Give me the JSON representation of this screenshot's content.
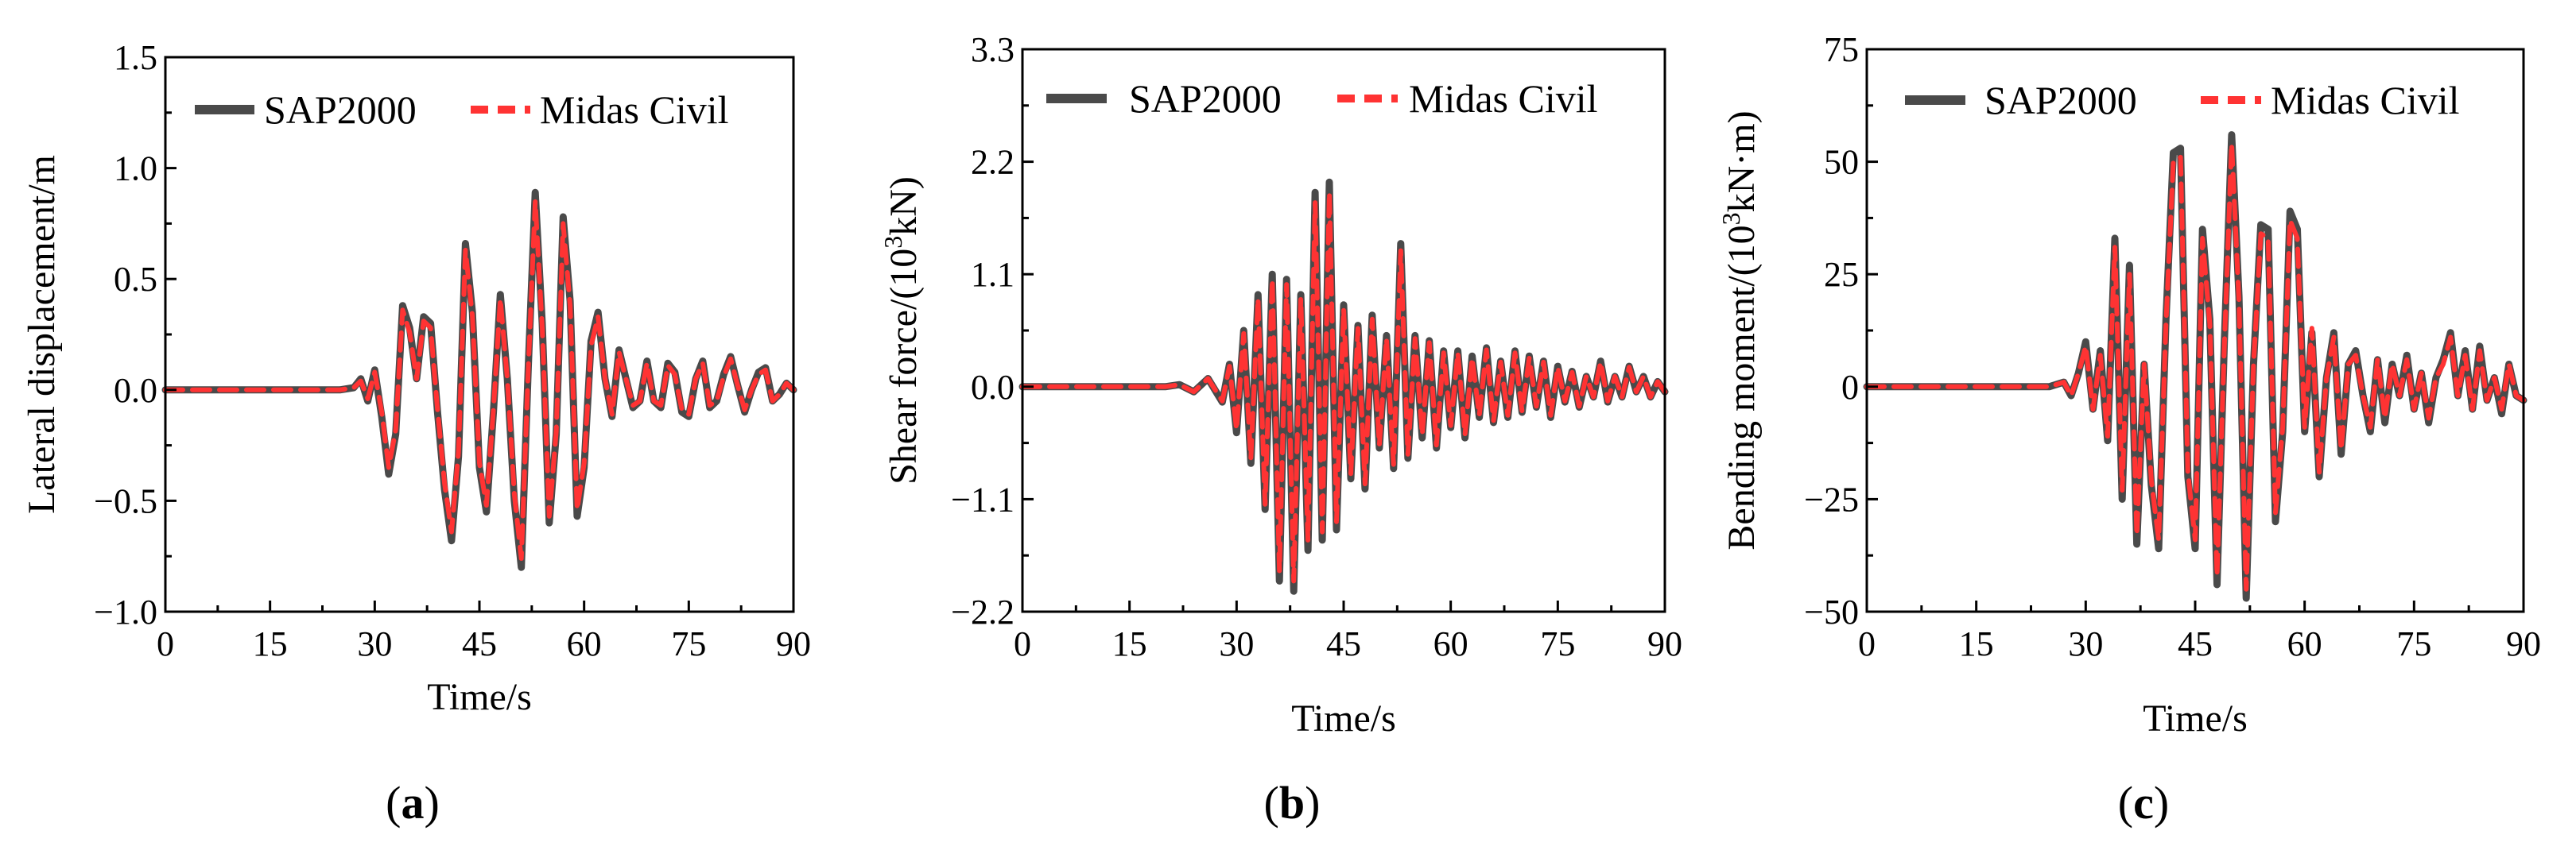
{
  "colors": {
    "sap2000": "#4a4a4a",
    "midas": "#ff3333",
    "axis": "#000000"
  },
  "legend": {
    "sap2000": "SAP2000",
    "midas": "Midas Civil"
  },
  "chart_data": [
    {
      "type": "line",
      "panel_label": "a",
      "xlabel": "Time/s",
      "ylabel": "Lateral displacement/m",
      "xlim": [
        0,
        90
      ],
      "ylim": [
        -1.0,
        1.5
      ],
      "xticks": [
        0,
        15,
        30,
        45,
        60,
        75,
        90
      ],
      "yticks": [
        -1.0,
        -0.5,
        0.0,
        0.5,
        1.0,
        1.5
      ],
      "ytick_labels": [
        "−1.0",
        "−0.5",
        "0.0",
        "0.5",
        "1.0",
        "1.5"
      ],
      "legend_position": "top",
      "series": [
        {
          "name": "SAP2000",
          "x": [
            0,
            5,
            10,
            15,
            20,
            25,
            27,
            28,
            29,
            30,
            31,
            32,
            33,
            34,
            35,
            36,
            37,
            38,
            39,
            40,
            41,
            42,
            43,
            44,
            45,
            46,
            47,
            48,
            49,
            50,
            51,
            52,
            53,
            54,
            55,
            56,
            57,
            58,
            59,
            60,
            61,
            62,
            63,
            64,
            65,
            66,
            67,
            68,
            69,
            70,
            71,
            72,
            73,
            74,
            75,
            76,
            77,
            78,
            79,
            80,
            81,
            82,
            83,
            84,
            85,
            86,
            87,
            88,
            89,
            90
          ],
          "y": [
            0,
            0,
            0,
            0,
            0,
            0,
            0.01,
            0.05,
            -0.05,
            0.09,
            -0.12,
            -0.38,
            -0.2,
            0.38,
            0.28,
            0.05,
            0.33,
            0.3,
            -0.1,
            -0.45,
            -0.68,
            -0.3,
            0.66,
            0.35,
            -0.35,
            -0.55,
            -0.1,
            0.43,
            0.05,
            -0.5,
            -0.8,
            0.1,
            0.89,
            0.3,
            -0.6,
            -0.2,
            0.78,
            0.4,
            -0.57,
            -0.35,
            0.22,
            0.35,
            0.05,
            -0.12,
            0.18,
            0.05,
            -0.08,
            -0.05,
            0.13,
            -0.05,
            -0.08,
            0.12,
            0.08,
            -0.1,
            -0.12,
            0.05,
            0.13,
            -0.08,
            -0.05,
            0.07,
            0.15,
            0.02,
            -0.1,
            0.0,
            0.08,
            0.1,
            -0.05,
            -0.02,
            0.03,
            0.0
          ]
        },
        {
          "name": "Midas Civil",
          "x": [
            0,
            5,
            10,
            15,
            20,
            25,
            27,
            28,
            29,
            30,
            31,
            32,
            33,
            34,
            35,
            36,
            37,
            38,
            39,
            40,
            41,
            42,
            43,
            44,
            45,
            46,
            47,
            48,
            49,
            50,
            51,
            52,
            53,
            54,
            55,
            56,
            57,
            58,
            59,
            60,
            61,
            62,
            63,
            64,
            65,
            66,
            67,
            68,
            69,
            70,
            71,
            72,
            73,
            74,
            75,
            76,
            77,
            78,
            79,
            80,
            81,
            82,
            83,
            84,
            85,
            86,
            87,
            88,
            89,
            90
          ],
          "y": [
            0,
            0,
            0,
            0,
            0,
            0,
            0.01,
            0.04,
            -0.04,
            0.08,
            -0.1,
            -0.35,
            -0.18,
            0.36,
            0.26,
            0.05,
            0.31,
            0.28,
            -0.09,
            -0.42,
            -0.64,
            -0.28,
            0.63,
            0.33,
            -0.33,
            -0.52,
            -0.09,
            0.41,
            0.05,
            -0.47,
            -0.76,
            0.09,
            0.85,
            0.28,
            -0.57,
            -0.19,
            0.75,
            0.38,
            -0.54,
            -0.33,
            0.2,
            0.33,
            0.05,
            -0.11,
            0.17,
            0.05,
            -0.07,
            -0.05,
            0.12,
            -0.05,
            -0.07,
            0.11,
            0.07,
            -0.09,
            -0.11,
            0.05,
            0.12,
            -0.07,
            -0.05,
            0.06,
            0.14,
            0.02,
            -0.09,
            0.0,
            0.07,
            0.09,
            -0.05,
            -0.02,
            0.03,
            0.0
          ]
        }
      ]
    },
    {
      "type": "line",
      "panel_label": "b",
      "xlabel": "Time/s",
      "ylabel_prefix": "Shear force/(10",
      "ylabel_sup": "3",
      "ylabel_suffix": "kN)",
      "xlim": [
        0,
        90
      ],
      "ylim": [
        -2.2,
        3.3
      ],
      "xticks": [
        0,
        15,
        30,
        45,
        60,
        75,
        90
      ],
      "yticks": [
        -2.2,
        -1.1,
        0.0,
        1.1,
        2.2,
        3.3
      ],
      "ytick_labels": [
        "−2.2",
        "−1.1",
        "0.0",
        "1.1",
        "2.2",
        "3.3"
      ],
      "legend_position": "top",
      "series": [
        {
          "name": "SAP2000",
          "x": [
            0,
            10,
            20,
            22,
            24,
            26,
            28,
            29,
            30,
            31,
            32,
            33,
            34,
            35,
            36,
            37,
            38,
            39,
            40,
            41,
            42,
            43,
            44,
            45,
            46,
            47,
            48,
            49,
            50,
            51,
            52,
            53,
            54,
            55,
            56,
            57,
            58,
            59,
            60,
            61,
            62,
            63,
            64,
            65,
            66,
            67,
            68,
            69,
            70,
            71,
            72,
            73,
            74,
            75,
            76,
            77,
            78,
            79,
            80,
            81,
            82,
            83,
            84,
            85,
            86,
            87,
            88,
            89,
            90
          ],
          "y": [
            0,
            0,
            0,
            0.02,
            -0.05,
            0.08,
            -0.15,
            0.22,
            -0.45,
            0.55,
            -0.75,
            0.9,
            -1.2,
            1.1,
            -1.9,
            1.05,
            -2.0,
            0.9,
            -1.6,
            1.9,
            -1.5,
            2.0,
            -1.4,
            0.8,
            -0.9,
            0.6,
            -1.0,
            0.7,
            -0.6,
            0.5,
            -0.8,
            1.4,
            -0.7,
            0.5,
            -0.5,
            0.45,
            -0.6,
            0.35,
            -0.4,
            0.35,
            -0.5,
            0.3,
            -0.3,
            0.38,
            -0.35,
            0.25,
            -0.3,
            0.35,
            -0.25,
            0.3,
            -0.2,
            0.25,
            -0.3,
            0.2,
            -0.15,
            0.15,
            -0.2,
            0.1,
            -0.1,
            0.25,
            -0.15,
            0.1,
            -0.1,
            0.2,
            -0.05,
            0.1,
            -0.1,
            0.05,
            -0.05
          ]
        },
        {
          "name": "Midas Civil",
          "x": [
            0,
            10,
            20,
            22,
            24,
            26,
            28,
            29,
            30,
            31,
            32,
            33,
            34,
            35,
            36,
            37,
            38,
            39,
            40,
            41,
            42,
            43,
            44,
            45,
            46,
            47,
            48,
            49,
            50,
            51,
            52,
            53,
            54,
            55,
            56,
            57,
            58,
            59,
            60,
            61,
            62,
            63,
            64,
            65,
            66,
            67,
            68,
            69,
            70,
            71,
            72,
            73,
            74,
            75,
            76,
            77,
            78,
            79,
            80,
            81,
            82,
            83,
            84,
            85,
            86,
            87,
            88,
            89,
            90
          ],
          "y": [
            0,
            0,
            0,
            0.02,
            -0.05,
            0.08,
            -0.14,
            0.2,
            -0.42,
            0.52,
            -0.7,
            0.86,
            -1.15,
            1.05,
            -1.8,
            1.0,
            -1.9,
            0.86,
            -1.5,
            1.8,
            -1.42,
            1.9,
            -1.32,
            0.76,
            -0.85,
            0.57,
            -0.95,
            0.66,
            -0.57,
            0.47,
            -0.76,
            1.33,
            -0.66,
            0.47,
            -0.47,
            0.43,
            -0.57,
            0.33,
            -0.38,
            0.33,
            -0.47,
            0.28,
            -0.28,
            0.36,
            -0.33,
            0.24,
            -0.28,
            0.33,
            -0.24,
            0.28,
            -0.19,
            0.24,
            -0.28,
            0.19,
            -0.14,
            0.14,
            -0.19,
            0.1,
            -0.1,
            0.24,
            -0.14,
            0.1,
            -0.1,
            0.19,
            -0.05,
            0.1,
            -0.1,
            0.05,
            -0.05
          ]
        }
      ]
    },
    {
      "type": "line",
      "panel_label": "c",
      "xlabel": "Time/s",
      "ylabel_prefix": "Bending moment/(10",
      "ylabel_sup": "3",
      "ylabel_suffix": "kN·m)",
      "xlim": [
        0,
        90
      ],
      "ylim": [
        -50,
        75
      ],
      "xticks": [
        0,
        15,
        30,
        45,
        60,
        75,
        90
      ],
      "yticks": [
        -50,
        -25,
        0,
        25,
        50,
        75
      ],
      "ytick_labels": [
        "−50",
        "−25",
        "0",
        "25",
        "50",
        "75"
      ],
      "legend_position": "top",
      "series": [
        {
          "name": "SAP2000",
          "x": [
            0,
            10,
            20,
            25,
            27,
            28,
            29,
            30,
            31,
            32,
            33,
            34,
            35,
            36,
            37,
            38,
            39,
            40,
            41,
            42,
            43,
            44,
            45,
            46,
            47,
            48,
            49,
            50,
            51,
            52,
            53,
            54,
            55,
            56,
            57,
            58,
            59,
            60,
            61,
            62,
            63,
            64,
            65,
            66,
            67,
            68,
            69,
            70,
            71,
            72,
            73,
            74,
            75,
            76,
            77,
            78,
            79,
            80,
            81,
            82,
            83,
            84,
            85,
            86,
            87,
            88,
            89,
            90
          ],
          "y": [
            0,
            0,
            0,
            0,
            1,
            -2,
            3,
            10,
            -5,
            8,
            -12,
            33,
            -25,
            27,
            -35,
            5,
            -22,
            -36,
            15,
            52,
            53,
            -20,
            -36,
            35,
            15,
            -44,
            10,
            56,
            20,
            -47,
            5,
            36,
            35,
            -30,
            -10,
            39,
            35,
            -10,
            12,
            -20,
            2,
            12,
            -15,
            5,
            8,
            -2,
            -10,
            6,
            -8,
            5,
            -2,
            7,
            -5,
            3,
            -8,
            2,
            6,
            12,
            -2,
            8,
            -5,
            9,
            -3,
            2,
            -6,
            5,
            -2,
            -3
          ]
        },
        {
          "name": "Midas Civil",
          "x": [
            0,
            10,
            20,
            25,
            27,
            28,
            29,
            30,
            31,
            32,
            33,
            34,
            35,
            36,
            37,
            38,
            39,
            40,
            41,
            42,
            43,
            44,
            45,
            46,
            47,
            48,
            49,
            50,
            51,
            52,
            53,
            54,
            55,
            56,
            57,
            58,
            59,
            60,
            61,
            62,
            63,
            64,
            65,
            66,
            67,
            68,
            69,
            70,
            71,
            72,
            73,
            74,
            75,
            76,
            77,
            78,
            79,
            80,
            81,
            82,
            83,
            84,
            85,
            86,
            87,
            88,
            89,
            90
          ],
          "y": [
            0,
            0,
            0,
            0,
            1,
            -2,
            3,
            9,
            -5,
            7,
            -11,
            31,
            -23,
            25,
            -33,
            5,
            -21,
            -34,
            14,
            50,
            51,
            -19,
            -34,
            33,
            14,
            -42,
            9,
            54,
            19,
            -45,
            5,
            34,
            33,
            -28,
            -9,
            37,
            33,
            -9,
            13,
            -19,
            2,
            11,
            -14,
            5,
            7,
            -2,
            -9,
            6,
            -7,
            5,
            -2,
            6,
            -5,
            3,
            -7,
            2,
            5,
            11,
            -2,
            7,
            -5,
            8,
            -3,
            2,
            -5,
            5,
            -2,
            -3
          ]
        }
      ]
    }
  ]
}
